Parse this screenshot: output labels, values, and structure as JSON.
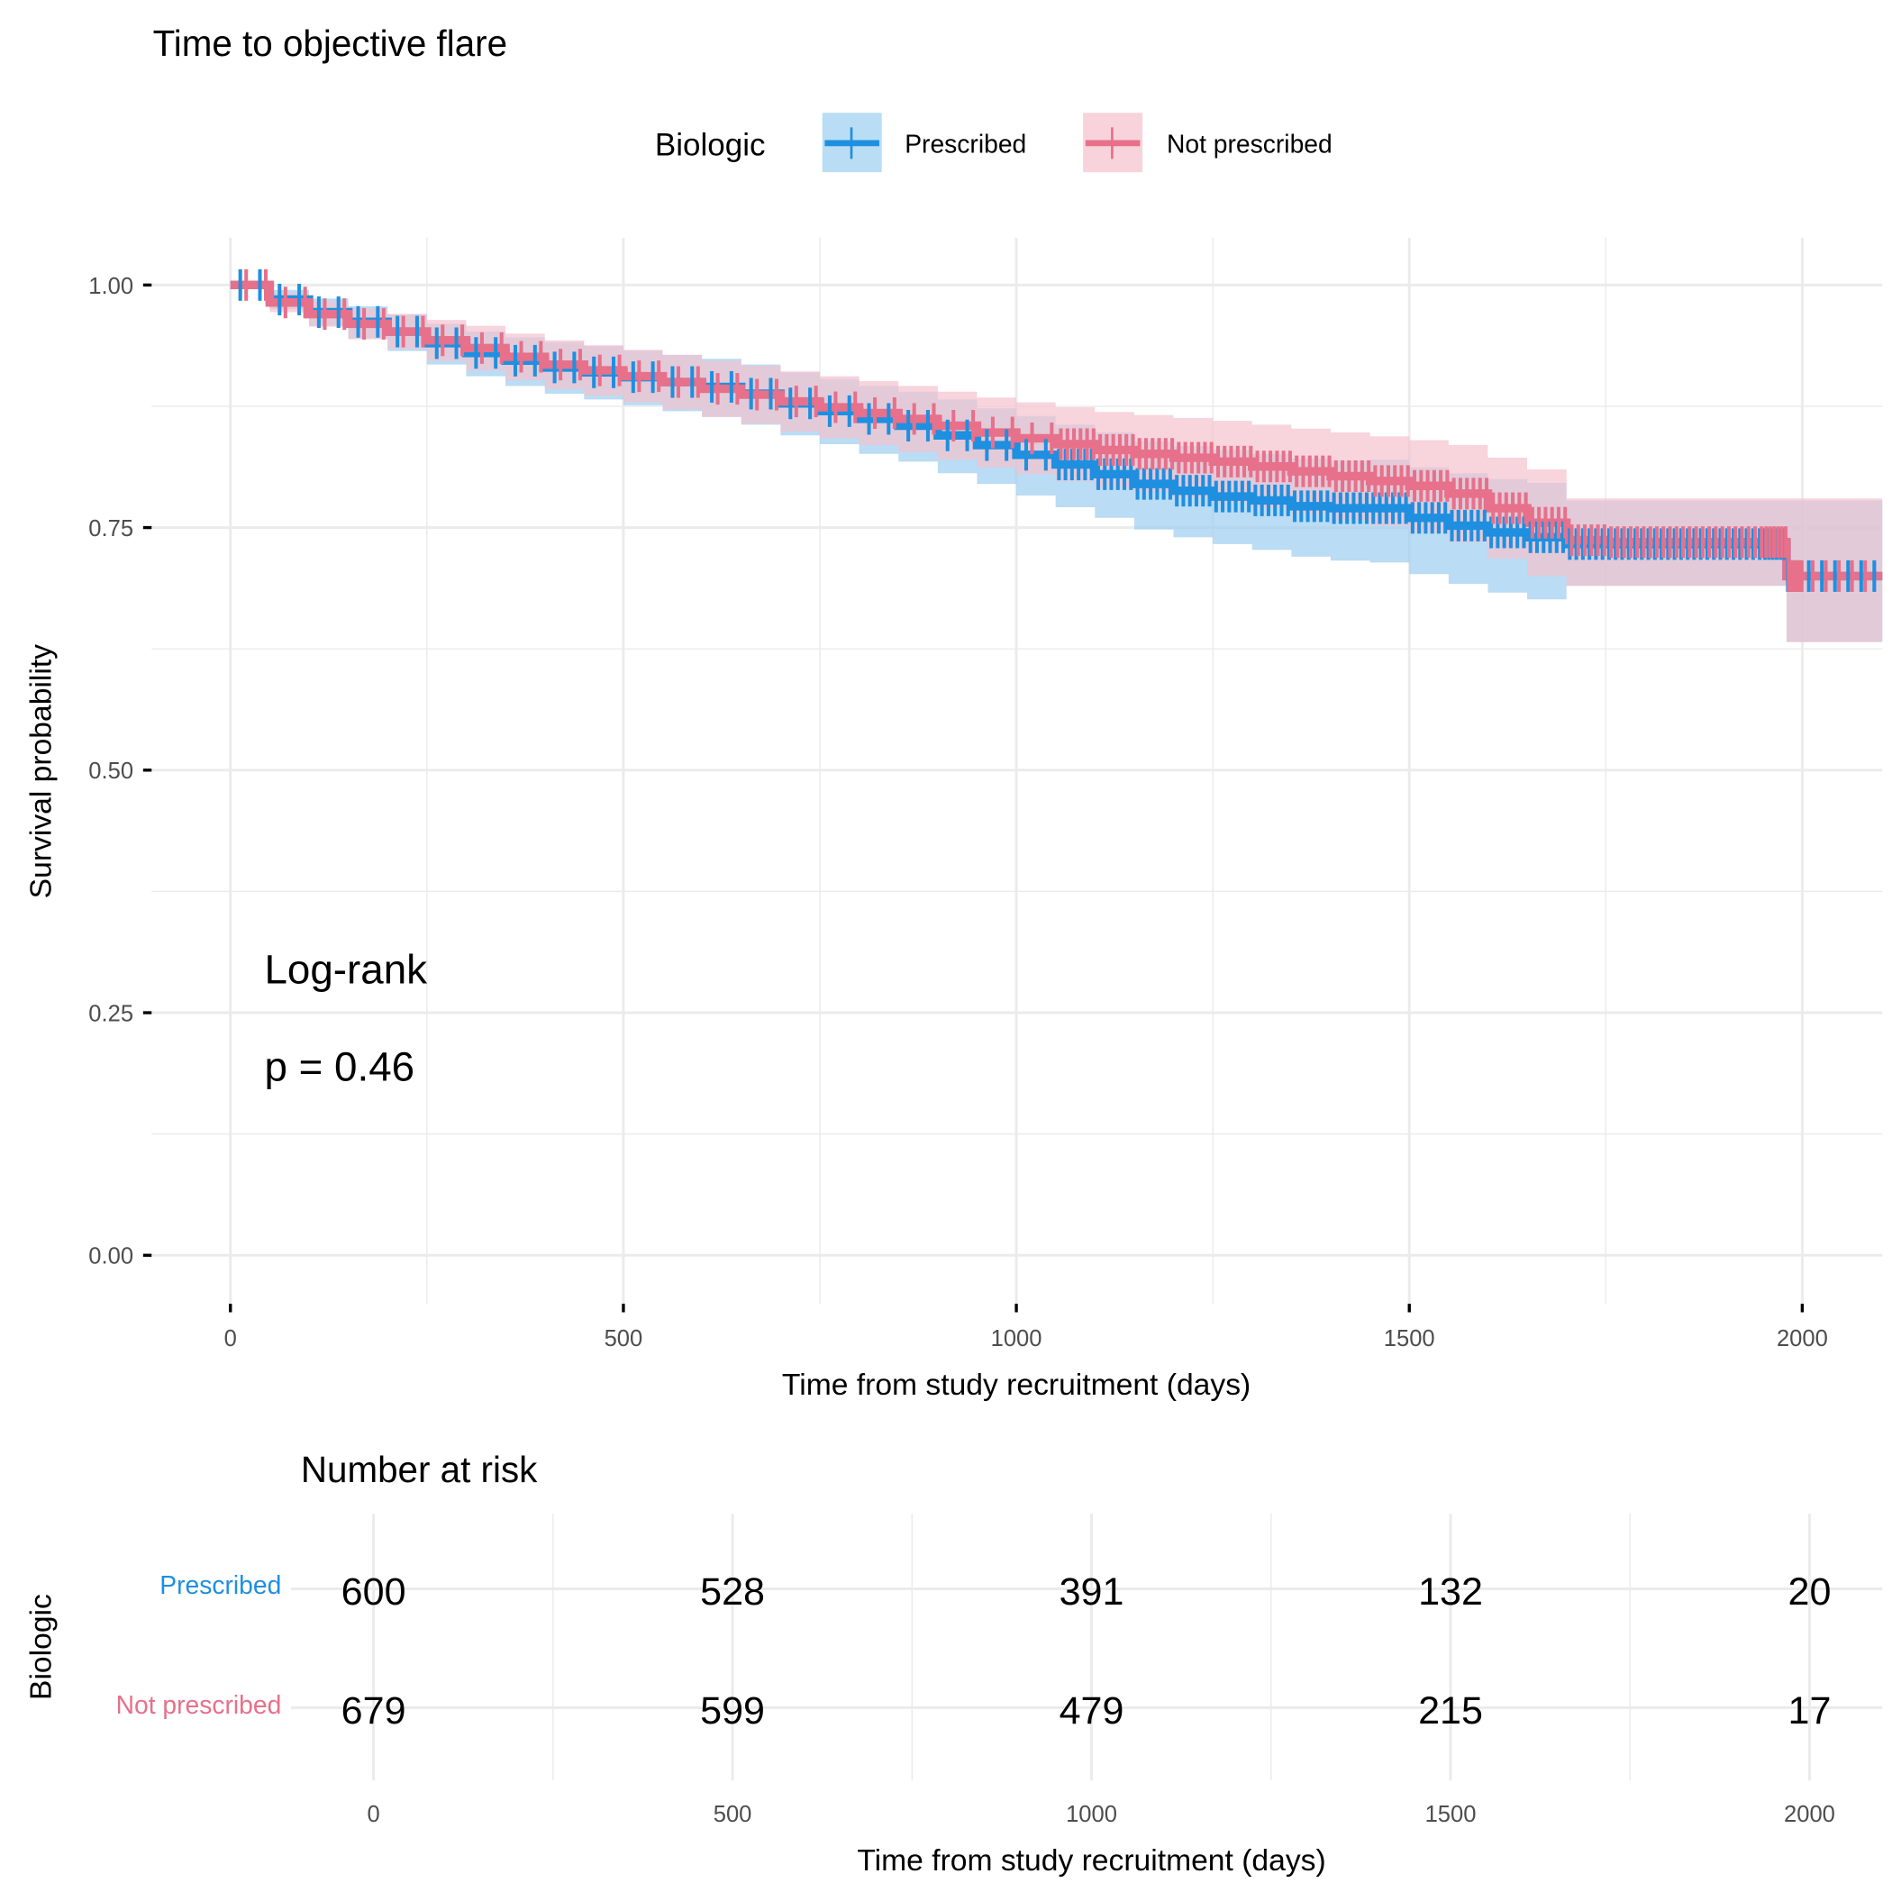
{
  "chart_data": {
    "type": "line",
    "subtype": "kaplan-meier",
    "title": "Time to objective flare",
    "xlabel": "Time from study recruitment (days)",
    "ylabel": "Survival probability",
    "xlim": [
      -100,
      2100
    ],
    "ylim": [
      -0.05,
      1.05
    ],
    "x_ticks": [
      0,
      500,
      1000,
      1500,
      2000
    ],
    "x_tick_labels": [
      "0",
      "500",
      "1000",
      "1500",
      "2000"
    ],
    "y_ticks": [
      0,
      0.25,
      0.5,
      0.75,
      1.0
    ],
    "y_tick_labels": [
      "0.00",
      "0.25",
      "0.50",
      "0.75",
      "1.00"
    ],
    "grid": true,
    "legend": {
      "title": "Biologic",
      "position": "top",
      "entries": [
        "Prescribed",
        "Not prescribed"
      ]
    },
    "annotation": {
      "line1": "Log-rank",
      "line2": "p = 0.46"
    },
    "series": [
      {
        "name": "Prescribed",
        "color": "#1F8FE0",
        "band_color": "#9DCDF0",
        "x": [
          0,
          50,
          100,
          150,
          200,
          250,
          300,
          350,
          400,
          450,
          500,
          550,
          600,
          650,
          700,
          750,
          800,
          850,
          900,
          950,
          1000,
          1050,
          1100,
          1150,
          1200,
          1250,
          1300,
          1350,
          1400,
          1450,
          1500,
          1550,
          1600,
          1650,
          1700,
          1750,
          1800,
          1850,
          1900,
          1950,
          1980,
          2000,
          2100
        ],
        "surv": [
          1.0,
          0.985,
          0.972,
          0.962,
          0.952,
          0.94,
          0.93,
          0.922,
          0.915,
          0.91,
          0.905,
          0.9,
          0.895,
          0.888,
          0.878,
          0.87,
          0.862,
          0.855,
          0.845,
          0.835,
          0.825,
          0.815,
          0.805,
          0.795,
          0.788,
          0.782,
          0.778,
          0.772,
          0.77,
          0.77,
          0.76,
          0.752,
          0.745,
          0.74,
          0.733,
          0.733,
          0.733,
          0.733,
          0.733,
          0.733,
          0.7,
          0.7,
          0.7
        ],
        "lower": [
          1.0,
          0.975,
          0.958,
          0.945,
          0.932,
          0.918,
          0.906,
          0.896,
          0.888,
          0.882,
          0.876,
          0.87,
          0.864,
          0.856,
          0.845,
          0.836,
          0.826,
          0.818,
          0.806,
          0.795,
          0.783,
          0.771,
          0.76,
          0.748,
          0.74,
          0.733,
          0.727,
          0.72,
          0.716,
          0.714,
          0.702,
          0.692,
          0.683,
          0.676,
          0.69,
          0.69,
          0.69,
          0.69,
          0.69,
          0.69,
          0.632,
          0.632,
          0.632
        ],
        "upper": [
          1.0,
          0.995,
          0.986,
          0.978,
          0.97,
          0.96,
          0.952,
          0.946,
          0.941,
          0.937,
          0.933,
          0.928,
          0.924,
          0.918,
          0.91,
          0.903,
          0.896,
          0.89,
          0.882,
          0.873,
          0.865,
          0.856,
          0.848,
          0.839,
          0.834,
          0.83,
          0.826,
          0.821,
          0.819,
          0.82,
          0.812,
          0.806,
          0.8,
          0.796,
          0.778,
          0.778,
          0.778,
          0.778,
          0.778,
          0.778,
          0.778,
          0.778,
          0.778
        ]
      },
      {
        "name": "Not prescribed",
        "color": "#E7708A",
        "band_color": "#F5C2CD",
        "x": [
          0,
          50,
          100,
          150,
          200,
          250,
          300,
          350,
          400,
          450,
          500,
          550,
          600,
          650,
          700,
          750,
          800,
          850,
          900,
          950,
          1000,
          1050,
          1100,
          1150,
          1200,
          1250,
          1300,
          1350,
          1400,
          1450,
          1500,
          1550,
          1600,
          1650,
          1700,
          1750,
          1800,
          1850,
          1900,
          1950,
          1980,
          2000,
          2100
        ],
        "surv": [
          1.0,
          0.982,
          0.97,
          0.96,
          0.952,
          0.943,
          0.935,
          0.926,
          0.918,
          0.912,
          0.906,
          0.9,
          0.893,
          0.887,
          0.88,
          0.874,
          0.868,
          0.862,
          0.855,
          0.848,
          0.842,
          0.836,
          0.83,
          0.826,
          0.822,
          0.818,
          0.813,
          0.808,
          0.803,
          0.798,
          0.793,
          0.785,
          0.77,
          0.755,
          0.737,
          0.735,
          0.735,
          0.735,
          0.735,
          0.735,
          0.7,
          0.7,
          0.7
        ],
        "lower": [
          1.0,
          0.972,
          0.957,
          0.944,
          0.934,
          0.922,
          0.912,
          0.902,
          0.893,
          0.886,
          0.879,
          0.872,
          0.864,
          0.857,
          0.849,
          0.842,
          0.835,
          0.828,
          0.82,
          0.812,
          0.805,
          0.798,
          0.791,
          0.786,
          0.781,
          0.776,
          0.77,
          0.764,
          0.758,
          0.752,
          0.745,
          0.735,
          0.718,
          0.7,
          0.69,
          0.69,
          0.69,
          0.69,
          0.69,
          0.69,
          0.632,
          0.632,
          0.632
        ],
        "upper": [
          1.0,
          0.992,
          0.983,
          0.976,
          0.97,
          0.964,
          0.958,
          0.95,
          0.943,
          0.938,
          0.933,
          0.928,
          0.922,
          0.917,
          0.911,
          0.906,
          0.901,
          0.896,
          0.89,
          0.884,
          0.879,
          0.874,
          0.869,
          0.866,
          0.863,
          0.86,
          0.856,
          0.852,
          0.848,
          0.844,
          0.84,
          0.835,
          0.822,
          0.81,
          0.78,
          0.78,
          0.78,
          0.78,
          0.78,
          0.78,
          0.78,
          0.78,
          0.78
        ]
      }
    ],
    "risk_table": {
      "title": "Number at risk",
      "ylabel": "Biologic",
      "xlabel": "Time from study recruitment (days)",
      "times": [
        0,
        500,
        1000,
        1500,
        2000
      ],
      "time_labels": [
        "0",
        "500",
        "1000",
        "1500",
        "2000"
      ],
      "rows": [
        {
          "label": "Prescribed",
          "color": "#1F8FE0",
          "counts": [
            "600",
            "528",
            "391",
            "132",
            "20"
          ]
        },
        {
          "label": "Not prescribed",
          "color": "#E7708A",
          "counts": [
            "679",
            "599",
            "479",
            "215",
            "17"
          ]
        }
      ]
    }
  }
}
